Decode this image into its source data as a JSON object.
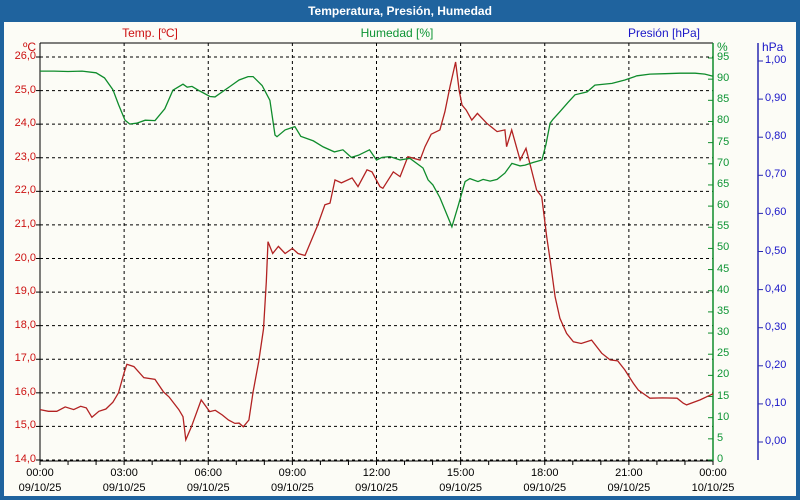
{
  "window": {
    "title": "Temperatura, Presión, Humedad"
  },
  "legend": {
    "temp": "Temp. [ºC]",
    "hum": "Humedad [%]",
    "pres": "Presión [hPa]"
  },
  "axis_units": {
    "temp": "ºC",
    "hum": "%",
    "pres": "hPa"
  },
  "colors": {
    "titlebar_bg": "#1f639e",
    "panel_bg": "#fcfcf6",
    "grid": "#000000",
    "temp_text": "#cc1111",
    "temp_line": "#b22222",
    "hum_text": "#0d9434",
    "hum_line": "#0f8c2c",
    "pres_text": "#1a16c8",
    "pres_line": "#2a2ab0"
  },
  "chart_data": {
    "type": "line",
    "title": "Temperatura, Presión, Humedad",
    "grid": "dashed-black",
    "x_axis": {
      "range_hours": [
        0,
        24
      ],
      "minor_tick_every_hours": 1,
      "major_tick_hours": [
        0,
        3,
        6,
        9,
        12,
        15,
        18,
        21,
        24
      ],
      "tick_times": [
        "00:00",
        "03:00",
        "06:00",
        "09:00",
        "12:00",
        "15:00",
        "18:00",
        "21:00",
        "00:00"
      ],
      "tick_dates": [
        "09/10/25",
        "09/10/25",
        "09/10/25",
        "09/10/25",
        "09/10/25",
        "09/10/25",
        "09/10/25",
        "09/10/25",
        "10/10/25"
      ]
    },
    "y_axes": [
      {
        "id": "temp",
        "label": "Temp. [ºC]",
        "unit": "ºC",
        "min": 14,
        "max": 26,
        "step": 1,
        "tick_labels": [
          "26,0",
          "25,0",
          "24,0",
          "23,0",
          "22,0",
          "21,0",
          "20,0",
          "19,0",
          "18,0",
          "17,0",
          "16,0",
          "15,0",
          "14,0"
        ]
      },
      {
        "id": "hum",
        "label": "Humedad [%]",
        "unit": "%",
        "min": 0,
        "max": 95,
        "step": 5,
        "tick_labels": [
          "95",
          "90",
          "85",
          "80",
          "75",
          "70",
          "65",
          "60",
          "55",
          "50",
          "45",
          "40",
          "35",
          "30",
          "25",
          "20",
          "15",
          "10",
          "5",
          "0"
        ]
      },
      {
        "id": "pres",
        "label": "Presión [hPa]",
        "unit": "hPa",
        "min": 0.0,
        "max": 1.0,
        "step": 0.1,
        "tick_labels": [
          "1,00",
          "0,90",
          "0,80",
          "0,70",
          "0,60",
          "0,50",
          "0,40",
          "0,30",
          "0,20",
          "0,10",
          "0,00"
        ]
      }
    ],
    "series": [
      {
        "name": "Temp. [ºC]",
        "axis": "temp",
        "color": "#b22222",
        "points": [
          [
            0,
            15.5
          ],
          [
            0.3,
            15.45
          ],
          [
            0.6,
            15.45
          ],
          [
            0.9,
            15.58
          ],
          [
            1.2,
            15.5
          ],
          [
            1.45,
            15.6
          ],
          [
            1.65,
            15.55
          ],
          [
            1.85,
            15.27
          ],
          [
            2.1,
            15.45
          ],
          [
            2.35,
            15.52
          ],
          [
            2.6,
            15.72
          ],
          [
            2.8,
            16.0
          ],
          [
            3.0,
            16.6
          ],
          [
            3.1,
            16.85
          ],
          [
            3.35,
            16.78
          ],
          [
            3.7,
            16.45
          ],
          [
            4.1,
            16.4
          ],
          [
            4.4,
            16.03
          ],
          [
            4.6,
            15.88
          ],
          [
            4.95,
            15.5
          ],
          [
            5.1,
            15.29
          ],
          [
            5.2,
            14.6
          ],
          [
            5.4,
            14.99
          ],
          [
            5.75,
            15.79
          ],
          [
            6.05,
            15.44
          ],
          [
            6.25,
            15.48
          ],
          [
            6.5,
            15.34
          ],
          [
            6.72,
            15.19
          ],
          [
            6.95,
            15.09
          ],
          [
            7.1,
            15.1
          ],
          [
            7.25,
            14.99
          ],
          [
            7.45,
            15.19
          ],
          [
            7.6,
            16.03
          ],
          [
            7.8,
            16.93
          ],
          [
            7.97,
            17.9
          ],
          [
            8.07,
            19.3
          ],
          [
            8.13,
            20.5
          ],
          [
            8.3,
            20.15
          ],
          [
            8.5,
            20.36
          ],
          [
            8.74,
            20.15
          ],
          [
            9.0,
            20.3
          ],
          [
            9.2,
            20.15
          ],
          [
            9.45,
            20.09
          ],
          [
            9.88,
            20.95
          ],
          [
            10.16,
            21.6
          ],
          [
            10.34,
            21.65
          ],
          [
            10.52,
            22.34
          ],
          [
            10.75,
            22.25
          ],
          [
            11.13,
            22.4
          ],
          [
            11.34,
            22.14
          ],
          [
            11.66,
            22.64
          ],
          [
            11.84,
            22.58
          ],
          [
            12.12,
            22.14
          ],
          [
            12.23,
            22.09
          ],
          [
            12.6,
            22.58
          ],
          [
            12.84,
            22.44
          ],
          [
            13.12,
            23.03
          ],
          [
            13.55,
            22.93
          ],
          [
            13.73,
            23.33
          ],
          [
            13.95,
            23.7
          ],
          [
            14.26,
            23.83
          ],
          [
            14.44,
            24.37
          ],
          [
            14.62,
            25.12
          ],
          [
            14.82,
            25.85
          ],
          [
            14.95,
            25.0
          ],
          [
            15.05,
            24.57
          ],
          [
            15.2,
            24.42
          ],
          [
            15.4,
            24.12
          ],
          [
            15.6,
            24.32
          ],
          [
            15.93,
            24.03
          ],
          [
            16.3,
            23.78
          ],
          [
            16.58,
            23.83
          ],
          [
            16.64,
            23.33
          ],
          [
            16.82,
            23.83
          ],
          [
            17.12,
            22.93
          ],
          [
            17.33,
            23.28
          ],
          [
            17.71,
            22.04
          ],
          [
            17.89,
            21.84
          ],
          [
            18.07,
            20.65
          ],
          [
            18.19,
            19.96
          ],
          [
            18.37,
            18.86
          ],
          [
            18.54,
            18.22
          ],
          [
            18.78,
            17.77
          ],
          [
            19.02,
            17.52
          ],
          [
            19.3,
            17.47
          ],
          [
            19.67,
            17.57
          ],
          [
            20.03,
            17.18
          ],
          [
            20.33,
            16.98
          ],
          [
            20.6,
            16.95
          ],
          [
            20.86,
            16.68
          ],
          [
            21.16,
            16.28
          ],
          [
            21.34,
            16.08
          ],
          [
            21.51,
            15.98
          ],
          [
            21.75,
            15.84
          ],
          [
            22.2,
            15.85
          ],
          [
            22.72,
            15.84
          ],
          [
            22.94,
            15.69
          ],
          [
            23.06,
            15.64
          ],
          [
            23.54,
            15.79
          ],
          [
            24,
            15.97
          ]
        ]
      },
      {
        "name": "Humedad [%]",
        "axis": "hum",
        "color": "#0f8c2c",
        "points": [
          [
            0,
            91.9
          ],
          [
            0.5,
            91.9
          ],
          [
            1.0,
            91.8
          ],
          [
            1.5,
            91.9
          ],
          [
            2.0,
            91.5
          ],
          [
            2.3,
            90.3
          ],
          [
            2.6,
            87.5
          ],
          [
            2.8,
            84.0
          ],
          [
            3.03,
            80.3
          ],
          [
            3.2,
            79.4
          ],
          [
            3.45,
            79.6
          ],
          [
            3.75,
            80.3
          ],
          [
            4.1,
            80.2
          ],
          [
            4.45,
            83.0
          ],
          [
            4.74,
            87.4
          ],
          [
            5.1,
            88.8
          ],
          [
            5.25,
            88.1
          ],
          [
            5.42,
            88.3
          ],
          [
            5.7,
            87.2
          ],
          [
            6.06,
            85.9
          ],
          [
            6.24,
            85.8
          ],
          [
            6.78,
            88.3
          ],
          [
            7.1,
            89.8
          ],
          [
            7.42,
            90.6
          ],
          [
            7.6,
            90.6
          ],
          [
            7.92,
            88.5
          ],
          [
            8.2,
            85.0
          ],
          [
            8.38,
            76.8
          ],
          [
            8.45,
            76.4
          ],
          [
            8.74,
            78.0
          ],
          [
            9.09,
            78.8
          ],
          [
            9.3,
            76.5
          ],
          [
            9.75,
            75.4
          ],
          [
            10.1,
            74.0
          ],
          [
            10.5,
            72.8
          ],
          [
            10.8,
            73.3
          ],
          [
            11.1,
            71.5
          ],
          [
            11.35,
            72.0
          ],
          [
            11.75,
            73.3
          ],
          [
            12.0,
            70.9
          ],
          [
            12.2,
            71.5
          ],
          [
            12.48,
            71.7
          ],
          [
            12.84,
            70.9
          ],
          [
            13.19,
            71.3
          ],
          [
            13.66,
            69.0
          ],
          [
            13.84,
            66.2
          ],
          [
            14.01,
            65.0
          ],
          [
            14.26,
            62.0
          ],
          [
            14.51,
            58.0
          ],
          [
            14.69,
            55.1
          ],
          [
            14.91,
            60.0
          ],
          [
            15.16,
            65.8
          ],
          [
            15.33,
            66.5
          ],
          [
            15.62,
            65.8
          ],
          [
            15.8,
            66.3
          ],
          [
            16.05,
            65.9
          ],
          [
            16.3,
            66.3
          ],
          [
            16.58,
            67.8
          ],
          [
            16.83,
            70.1
          ],
          [
            17.12,
            69.5
          ],
          [
            17.3,
            69.7
          ],
          [
            17.58,
            70.3
          ],
          [
            17.9,
            70.9
          ],
          [
            18.04,
            74.5
          ],
          [
            18.19,
            79.6
          ],
          [
            18.29,
            80.5
          ],
          [
            18.54,
            82.3
          ],
          [
            18.83,
            84.5
          ],
          [
            19.08,
            86.3
          ],
          [
            19.51,
            87.0
          ],
          [
            19.79,
            88.6
          ],
          [
            20.4,
            89.0
          ],
          [
            20.86,
            89.8
          ],
          [
            21.29,
            90.8
          ],
          [
            21.75,
            91.2
          ],
          [
            22.29,
            91.3
          ],
          [
            22.82,
            91.4
          ],
          [
            23.36,
            91.4
          ],
          [
            23.71,
            91.2
          ],
          [
            24,
            90.7
          ]
        ]
      },
      {
        "name": "Presión [hPa]",
        "axis": "pres",
        "color": "#2a2ab0",
        "points": []
      }
    ]
  }
}
